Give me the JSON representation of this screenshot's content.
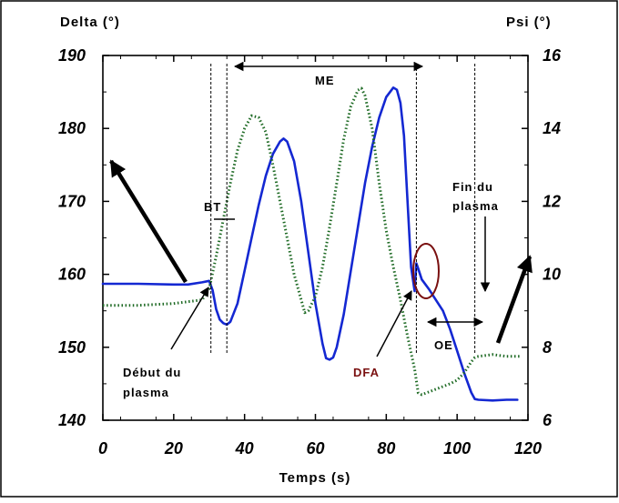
{
  "chart_data": {
    "type": "line",
    "title": "",
    "xlabel": "Temps (s)",
    "ylabel_left": "Delta (°)",
    "ylabel_right": "Psi (°)",
    "xlim": [
      0,
      120
    ],
    "ylim_left": [
      140,
      190
    ],
    "ylim_right": [
      6,
      16
    ],
    "x_ticks": [
      0,
      20,
      40,
      60,
      80,
      100,
      120
    ],
    "y_left_ticks": [
      140,
      150,
      160,
      170,
      180,
      190
    ],
    "y_right_ticks": [
      6,
      8,
      10,
      12,
      14,
      16
    ],
    "grid": false,
    "legend": "none",
    "series": [
      {
        "axis": "left",
        "color": "#1428d2",
        "style": "solid",
        "points": [
          [
            0,
            158.7
          ],
          [
            10,
            158.7
          ],
          [
            20,
            158.6
          ],
          [
            24,
            158.6
          ],
          [
            28,
            158.9
          ],
          [
            30,
            159.1
          ],
          [
            31,
            157.8
          ],
          [
            32,
            155.2
          ],
          [
            33,
            153.8
          ],
          [
            34,
            153.3
          ],
          [
            35,
            153.1
          ],
          [
            36,
            153.5
          ],
          [
            38,
            156
          ],
          [
            40,
            160.5
          ],
          [
            42,
            165
          ],
          [
            44,
            169.5
          ],
          [
            46,
            173.5
          ],
          [
            48,
            176.5
          ],
          [
            50,
            178.2
          ],
          [
            51,
            178.6
          ],
          [
            52,
            178.2
          ],
          [
            54,
            175.5
          ],
          [
            56,
            170
          ],
          [
            58,
            163
          ],
          [
            60,
            156
          ],
          [
            62,
            150.5
          ],
          [
            63,
            148.5
          ],
          [
            64,
            148.3
          ],
          [
            65,
            148.6
          ],
          [
            66,
            150
          ],
          [
            68,
            154.5
          ],
          [
            70,
            160.5
          ],
          [
            72,
            166.5
          ],
          [
            74,
            172.5
          ],
          [
            76,
            177.5
          ],
          [
            78,
            181.5
          ],
          [
            80,
            184.3
          ],
          [
            82,
            185.6
          ],
          [
            83,
            185.3
          ],
          [
            84,
            183.5
          ],
          [
            85,
            179
          ],
          [
            86,
            170
          ],
          [
            87,
            161
          ],
          [
            88,
            157.7
          ],
          [
            88.5,
            161.5
          ],
          [
            89,
            160.8
          ],
          [
            90,
            159.3
          ],
          [
            92,
            158
          ],
          [
            94,
            156.5
          ],
          [
            96,
            155
          ],
          [
            98,
            152.5
          ],
          [
            100,
            149.5
          ],
          [
            102,
            146.5
          ],
          [
            104,
            143.8
          ],
          [
            105,
            142.9
          ],
          [
            106,
            142.8
          ],
          [
            110,
            142.7
          ],
          [
            114,
            142.8
          ],
          [
            117,
            142.8
          ]
        ]
      },
      {
        "axis": "right",
        "color": "#1e6a24",
        "style": "dotted",
        "points": [
          [
            0,
            9.15
          ],
          [
            10,
            9.15
          ],
          [
            20,
            9.2
          ],
          [
            28,
            9.3
          ],
          [
            30,
            9.6
          ],
          [
            32,
            10.5
          ],
          [
            34,
            11.5
          ],
          [
            36,
            12.5
          ],
          [
            38,
            13.4
          ],
          [
            40,
            14
          ],
          [
            42,
            14.35
          ],
          [
            44,
            14.3
          ],
          [
            46,
            13.9
          ],
          [
            48,
            13
          ],
          [
            50,
            12
          ],
          [
            52,
            11
          ],
          [
            54,
            10
          ],
          [
            56,
            9.3
          ],
          [
            57,
            8.95
          ],
          [
            58,
            9
          ],
          [
            60,
            9.4
          ],
          [
            62,
            10.2
          ],
          [
            64,
            11.3
          ],
          [
            66,
            12.5
          ],
          [
            68,
            13.7
          ],
          [
            70,
            14.6
          ],
          [
            72,
            15.05
          ],
          [
            73,
            15.1
          ],
          [
            74,
            14.9
          ],
          [
            76,
            14
          ],
          [
            78,
            12.5
          ],
          [
            80,
            11.2
          ],
          [
            82,
            10.2
          ],
          [
            84,
            9.3
          ],
          [
            86,
            8.3
          ],
          [
            88,
            7.4
          ],
          [
            89,
            6.75
          ],
          [
            90,
            6.7
          ],
          [
            94,
            6.85
          ],
          [
            98,
            7
          ],
          [
            100,
            7.1
          ],
          [
            102,
            7.3
          ],
          [
            104,
            7.6
          ],
          [
            105,
            7.72
          ],
          [
            106,
            7.75
          ],
          [
            110,
            7.8
          ],
          [
            114,
            7.75
          ],
          [
            118,
            7.75
          ]
        ]
      }
    ],
    "markers": [
      {
        "x": 30.5,
        "label": ""
      },
      {
        "x": 35,
        "label": ""
      },
      {
        "x": 88.5,
        "label": ""
      },
      {
        "x": 105,
        "label": ""
      }
    ],
    "annotations": {
      "me": "ME",
      "bt": "BT",
      "oe": "OE",
      "dfa": "DFA",
      "debut_line1": "Début du",
      "debut_line2": "plasma",
      "fin_line1": "Fin du",
      "fin_line2": "plasma"
    },
    "colors": {
      "delta": "#1428d2",
      "psi": "#1e6a24",
      "dfa": "#7a1010"
    }
  }
}
